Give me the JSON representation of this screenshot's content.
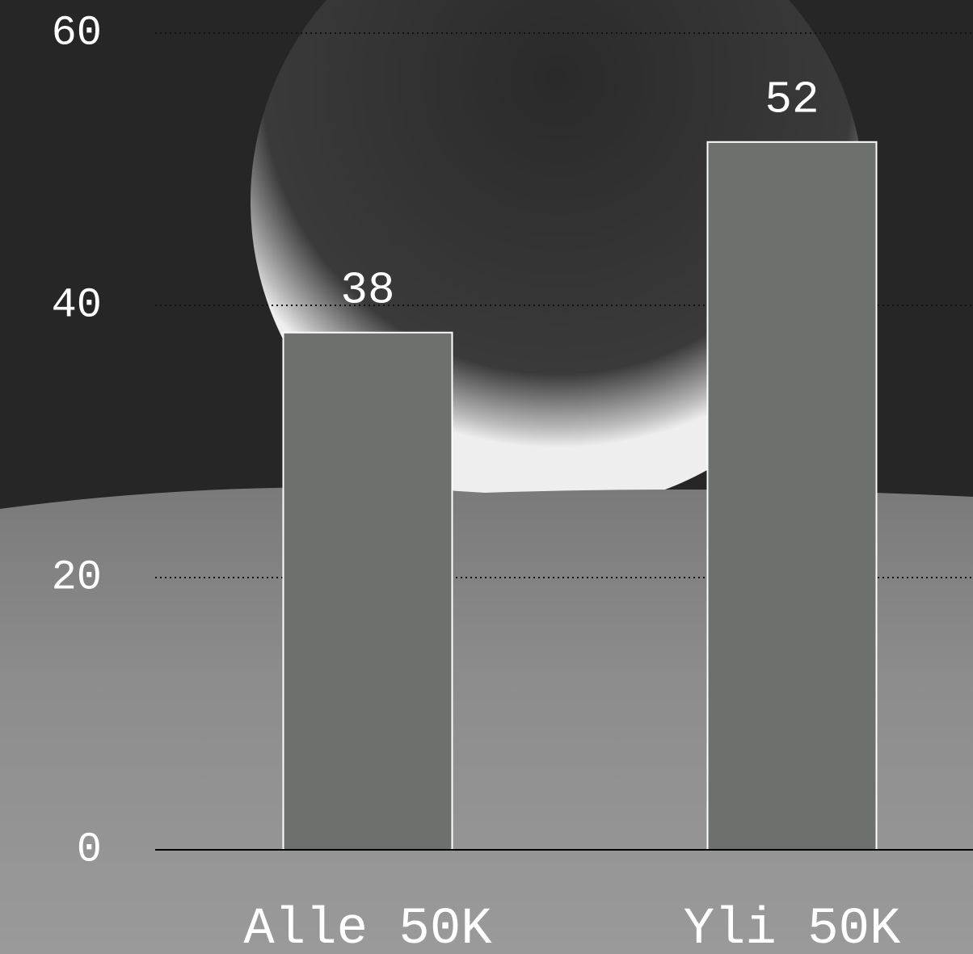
{
  "chart_data": {
    "type": "bar",
    "categories": [
      "Alle 50K",
      "Yli 50K"
    ],
    "values": [
      38,
      52
    ],
    "color": "#6c716e",
    "ylim": [
      0,
      60
    ],
    "yticks": [
      0,
      20,
      40,
      60
    ],
    "grid": true
  }
}
